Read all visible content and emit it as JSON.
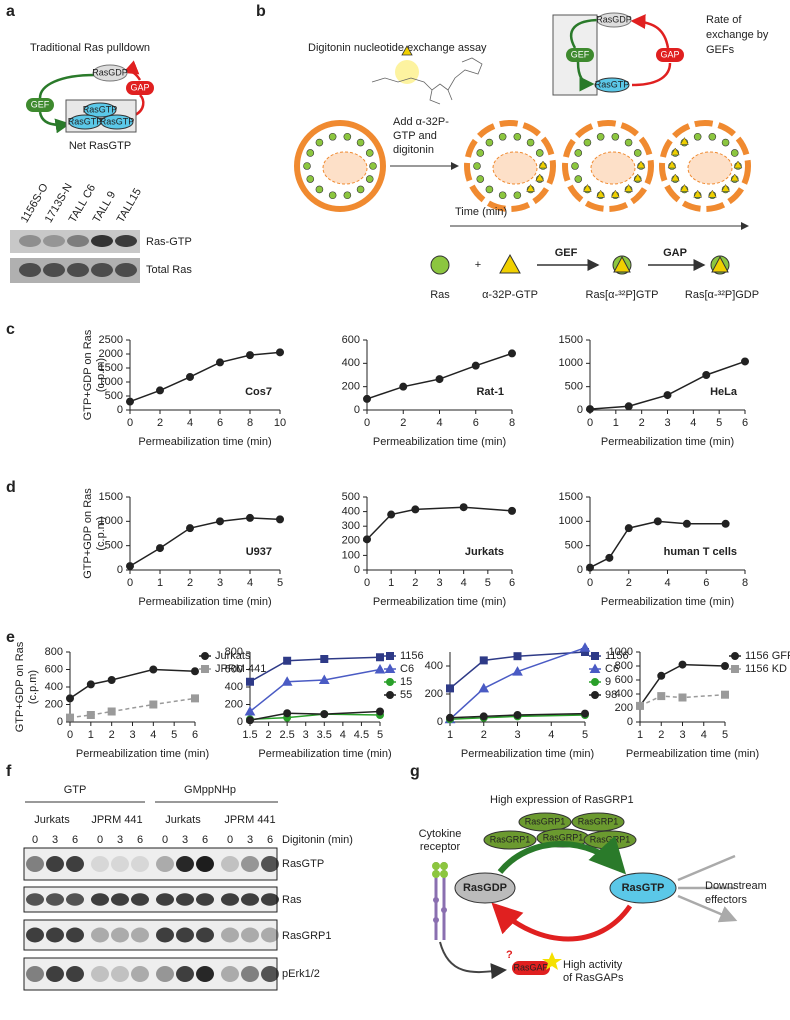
{
  "panel_labels": [
    "a",
    "b",
    "c",
    "d",
    "e",
    "f",
    "g"
  ],
  "panel_a": {
    "title": "Traditional Ras pulldown",
    "nodes": [
      "RasGDP",
      "GEF",
      "GAP",
      "RasGTP",
      "RasGTP",
      "RasGTP"
    ],
    "caption": "Net RasGTP",
    "lanes": [
      "1156S-O",
      "1713S-N",
      "TALL C6",
      "TALL 9",
      "TALL15"
    ],
    "rows": [
      "Ras-GTP",
      "Total Ras"
    ]
  },
  "panel_b": {
    "title": "Digitonin nucleotide exchange assay",
    "step": [
      "Add α-32P-",
      "GTP and",
      "digitonin"
    ],
    "time": "Time (min)",
    "nodes": [
      "RasGDP",
      "GEF",
      "GAP",
      "RasGTP"
    ],
    "rate": [
      "Rate of",
      "exchange by",
      "GEFs"
    ],
    "legend": [
      "Ras",
      "+",
      "α-32P-GTP",
      "GEF",
      "Ras[α-³²P]GTP",
      "GAP",
      "Ras[α-³²P]GDP"
    ]
  },
  "panel_f": {
    "groups": [
      "GTP",
      "GMppNHp"
    ],
    "cells": [
      "Jurkats",
      "JPRM 441",
      "Jurkats",
      "JPRM 441"
    ],
    "lanes": [
      "0",
      "3",
      "6",
      "0",
      "3",
      "6",
      "0",
      "3",
      "6",
      "0",
      "3",
      "6"
    ],
    "lane_title": "Digitonin (min)",
    "rows": [
      "RasGTP",
      "Ras",
      "RasGRP1",
      "pErk1/2"
    ]
  },
  "panel_g": {
    "title": "High expression of RasGRP1",
    "grp": [
      "RasGRP1",
      "RasGRP1",
      "RasGRP1",
      "RasGRP1",
      "RasGRP1"
    ],
    "receptor": [
      "Cytokine",
      "receptor"
    ],
    "gdp": "RasGDP",
    "gtp": "RasGTP",
    "effectors": [
      "Downstream",
      "effectors"
    ],
    "question": "?",
    "gap": "RasGAP",
    "gap_note": [
      "High activity",
      "of RasGAPs"
    ]
  },
  "chart_data": [
    {
      "type": "line",
      "annotation": "Cos7",
      "y_label": [
        "GTP+GDP on Ras",
        "(c.p.m)"
      ],
      "x_label": "Permeabilization time (min)",
      "x": [
        0,
        2,
        4,
        6,
        8,
        10
      ],
      "xlim": [
        0,
        10
      ],
      "xticks": [
        0,
        2,
        4,
        6,
        8,
        10
      ],
      "ylim": [
        0,
        2500
      ],
      "yticks": [
        0,
        500,
        1000,
        1500,
        2000,
        2500
      ],
      "series": [
        {
          "color": "#222222",
          "marker": "circle",
          "values": [
            300,
            700,
            1180,
            1700,
            1960,
            2060
          ]
        }
      ]
    },
    {
      "type": "line",
      "annotation": "Rat-1",
      "x_label": "Permeabilization time (min)",
      "x": [
        0,
        2,
        4,
        6,
        8
      ],
      "xlim": [
        0,
        8
      ],
      "xticks": [
        0,
        2,
        4,
        6,
        8
      ],
      "ylim": [
        0,
        600
      ],
      "yticks": [
        0,
        200,
        400,
        600
      ],
      "series": [
        {
          "color": "#222222",
          "marker": "circle",
          "values": [
            95,
            200,
            265,
            380,
            485
          ]
        }
      ]
    },
    {
      "type": "line",
      "annotation": "HeLa",
      "x_label": "Permeabilization time (min)",
      "x": [
        0,
        1.5,
        3,
        4.5,
        6
      ],
      "xlim": [
        0,
        6
      ],
      "xticks": [
        0,
        1,
        2,
        3,
        4,
        5,
        6
      ],
      "ylim": [
        0,
        1500
      ],
      "yticks": [
        0,
        500,
        1000,
        1500
      ],
      "series": [
        {
          "color": "#222222",
          "marker": "circle",
          "values": [
            20,
            80,
            320,
            750,
            1040
          ]
        }
      ]
    },
    {
      "type": "line",
      "annotation": "U937",
      "y_label": [
        "GTP+GDP on Ras",
        "(c.p.m)"
      ],
      "x_label": "Permeabilization time (min)",
      "x": [
        0,
        1,
        2,
        3,
        4,
        5
      ],
      "xlim": [
        0,
        5
      ],
      "xticks": [
        0,
        1,
        2,
        3,
        4,
        5
      ],
      "ylim": [
        0,
        1500
      ],
      "yticks": [
        0,
        500,
        1000,
        1500
      ],
      "series": [
        {
          "color": "#222222",
          "marker": "circle",
          "values": [
            80,
            450,
            860,
            1000,
            1070,
            1040
          ]
        }
      ]
    },
    {
      "type": "line",
      "annotation": "Jurkats",
      "x_label": "Permeabilization time (min)",
      "x": [
        0,
        1,
        2,
        4,
        6
      ],
      "xlim": [
        0,
        6
      ],
      "xticks": [
        0,
        1,
        2,
        3,
        4,
        5,
        6
      ],
      "ylim": [
        0,
        500
      ],
      "yticks": [
        0,
        100,
        200,
        300,
        400,
        500
      ],
      "series": [
        {
          "color": "#222222",
          "marker": "circle",
          "values": [
            210,
            380,
            415,
            430,
            405
          ]
        }
      ]
    },
    {
      "type": "line",
      "annotation": "human T cells",
      "x_label": "Permeabilization time (min)",
      "x": [
        0,
        1,
        2,
        3.5,
        5,
        7
      ],
      "xlim": [
        0,
        8
      ],
      "xticks": [
        0,
        2,
        4,
        6,
        8
      ],
      "ylim": [
        0,
        1500
      ],
      "yticks": [
        0,
        500,
        1000,
        1500
      ],
      "series": [
        {
          "color": "#222222",
          "marker": "circle",
          "values": [
            50,
            250,
            860,
            1000,
            950,
            950
          ]
        }
      ]
    },
    {
      "type": "line",
      "y_label": [
        "GTP+GDP on Ras",
        "(c.p.m)"
      ],
      "x_label": "Permeabilization time (min)",
      "x": [
        0,
        1,
        2,
        4,
        6
      ],
      "xlim": [
        0,
        6
      ],
      "xticks": [
        0,
        1,
        2,
        3,
        4,
        5,
        6
      ],
      "ylim": [
        0,
        800
      ],
      "yticks": [
        0,
        200,
        400,
        600,
        800
      ],
      "series": [
        {
          "name": "Jurkats",
          "color": "#222222",
          "marker": "circle",
          "values": [
            270,
            430,
            480,
            600,
            580
          ]
        },
        {
          "name": "JPRM 441",
          "color": "#9a9a9a",
          "marker": "square",
          "dashed": true,
          "values": [
            50,
            80,
            120,
            200,
            270
          ]
        }
      ]
    },
    {
      "type": "line",
      "x_label": "Permeabilization time (min)",
      "x": [
        1.5,
        2.5,
        3.5,
        5
      ],
      "xlim": [
        1.5,
        5
      ],
      "xticks": [
        1.5,
        2,
        2.5,
        3,
        3.5,
        4,
        4.5,
        5
      ],
      "ylim": [
        0,
        800
      ],
      "yticks": [
        0,
        200,
        400,
        600,
        800
      ],
      "series": [
        {
          "name": "1156",
          "color": "#2e3a87",
          "marker": "square",
          "values": [
            460,
            700,
            720,
            740
          ]
        },
        {
          "name": "C6",
          "color": "#4a5bc4",
          "marker": "triangle",
          "values": [
            120,
            460,
            480,
            600
          ]
        },
        {
          "name": "15",
          "color": "#2aa02a",
          "marker": "circle",
          "values": [
            30,
            50,
            90,
            80
          ]
        },
        {
          "name": "55",
          "color": "#222222",
          "marker": "circle",
          "values": [
            20,
            100,
            90,
            120
          ]
        }
      ]
    },
    {
      "type": "line",
      "x_label": "Permeabilization time (min)",
      "x": [
        1,
        2,
        3,
        5
      ],
      "xlim": [
        1,
        5
      ],
      "xticks": [
        1,
        2,
        3,
        4,
        5
      ],
      "ylim": [
        0,
        500
      ],
      "yticks": [
        0,
        200,
        400
      ],
      "series": [
        {
          "name": "1156",
          "color": "#2e3a87",
          "marker": "square",
          "values": [
            240,
            440,
            470,
            500
          ]
        },
        {
          "name": "C6",
          "color": "#4a5bc4",
          "marker": "triangle",
          "values": [
            20,
            240,
            360,
            530
          ]
        },
        {
          "name": "9",
          "color": "#2aa02a",
          "marker": "circle",
          "values": [
            20,
            30,
            40,
            50
          ]
        },
        {
          "name": "98",
          "color": "#222222",
          "marker": "circle",
          "values": [
            30,
            40,
            50,
            60
          ]
        }
      ]
    },
    {
      "type": "line",
      "x_label": "Permeabilization time (min)",
      "x": [
        1,
        2,
        3,
        5
      ],
      "xlim": [
        1,
        5
      ],
      "xticks": [
        1,
        2,
        3,
        4,
        5
      ],
      "ylim": [
        0,
        1000
      ],
      "yticks": [
        0,
        200,
        400,
        600,
        800,
        1000
      ],
      "series": [
        {
          "name": "1156 GFP",
          "color": "#222222",
          "marker": "circle",
          "values": [
            230,
            660,
            820,
            800
          ]
        },
        {
          "name": "1156 KD",
          "color": "#9a9a9a",
          "marker": "square",
          "dashed": true,
          "values": [
            230,
            370,
            350,
            390
          ]
        }
      ]
    }
  ]
}
